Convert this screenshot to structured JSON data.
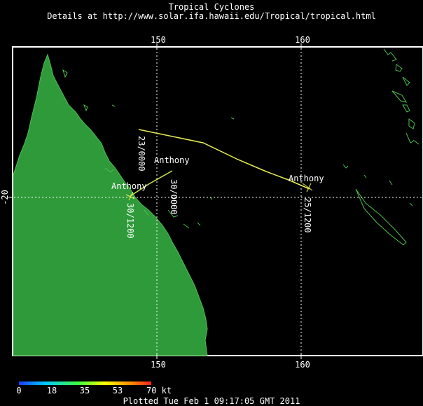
{
  "title": "Tropical Cyclones",
  "subtitle": "Details at http://www.solar.ifa.hawaii.edu/Tropical/tropical.html",
  "map": {
    "lon_ticks": [
      "150",
      "160"
    ],
    "lat_ticks": [
      "-20"
    ],
    "land_color": "#2f9a3a",
    "coast_color": "#4fbf4f",
    "grid_color": "#ffffff",
    "storms": [
      {
        "name": "Anthony",
        "track_color": "#e8ef52",
        "labels": [
          {
            "text": "23/0000"
          },
          {
            "text": "25/1200"
          }
        ]
      },
      {
        "name": "Anthony",
        "track_color": "#c8e84a",
        "labels": [
          {
            "text": "30/0000"
          },
          {
            "text": "30/1200"
          }
        ]
      }
    ],
    "storm_labels": [
      "Anthony",
      "Anthony",
      "Anthony"
    ]
  },
  "colorbar": {
    "ticks": [
      "0",
      "18",
      "35",
      "53",
      "70 kt"
    ],
    "colors": [
      "#1d3cff",
      "#00c8ff",
      "#3cff3c",
      "#ffff00",
      "#ff8a00",
      "#ff2020"
    ]
  },
  "footer": {
    "plotted": "Plotted Tue Feb 1 09:17:05 GMT 2011"
  }
}
